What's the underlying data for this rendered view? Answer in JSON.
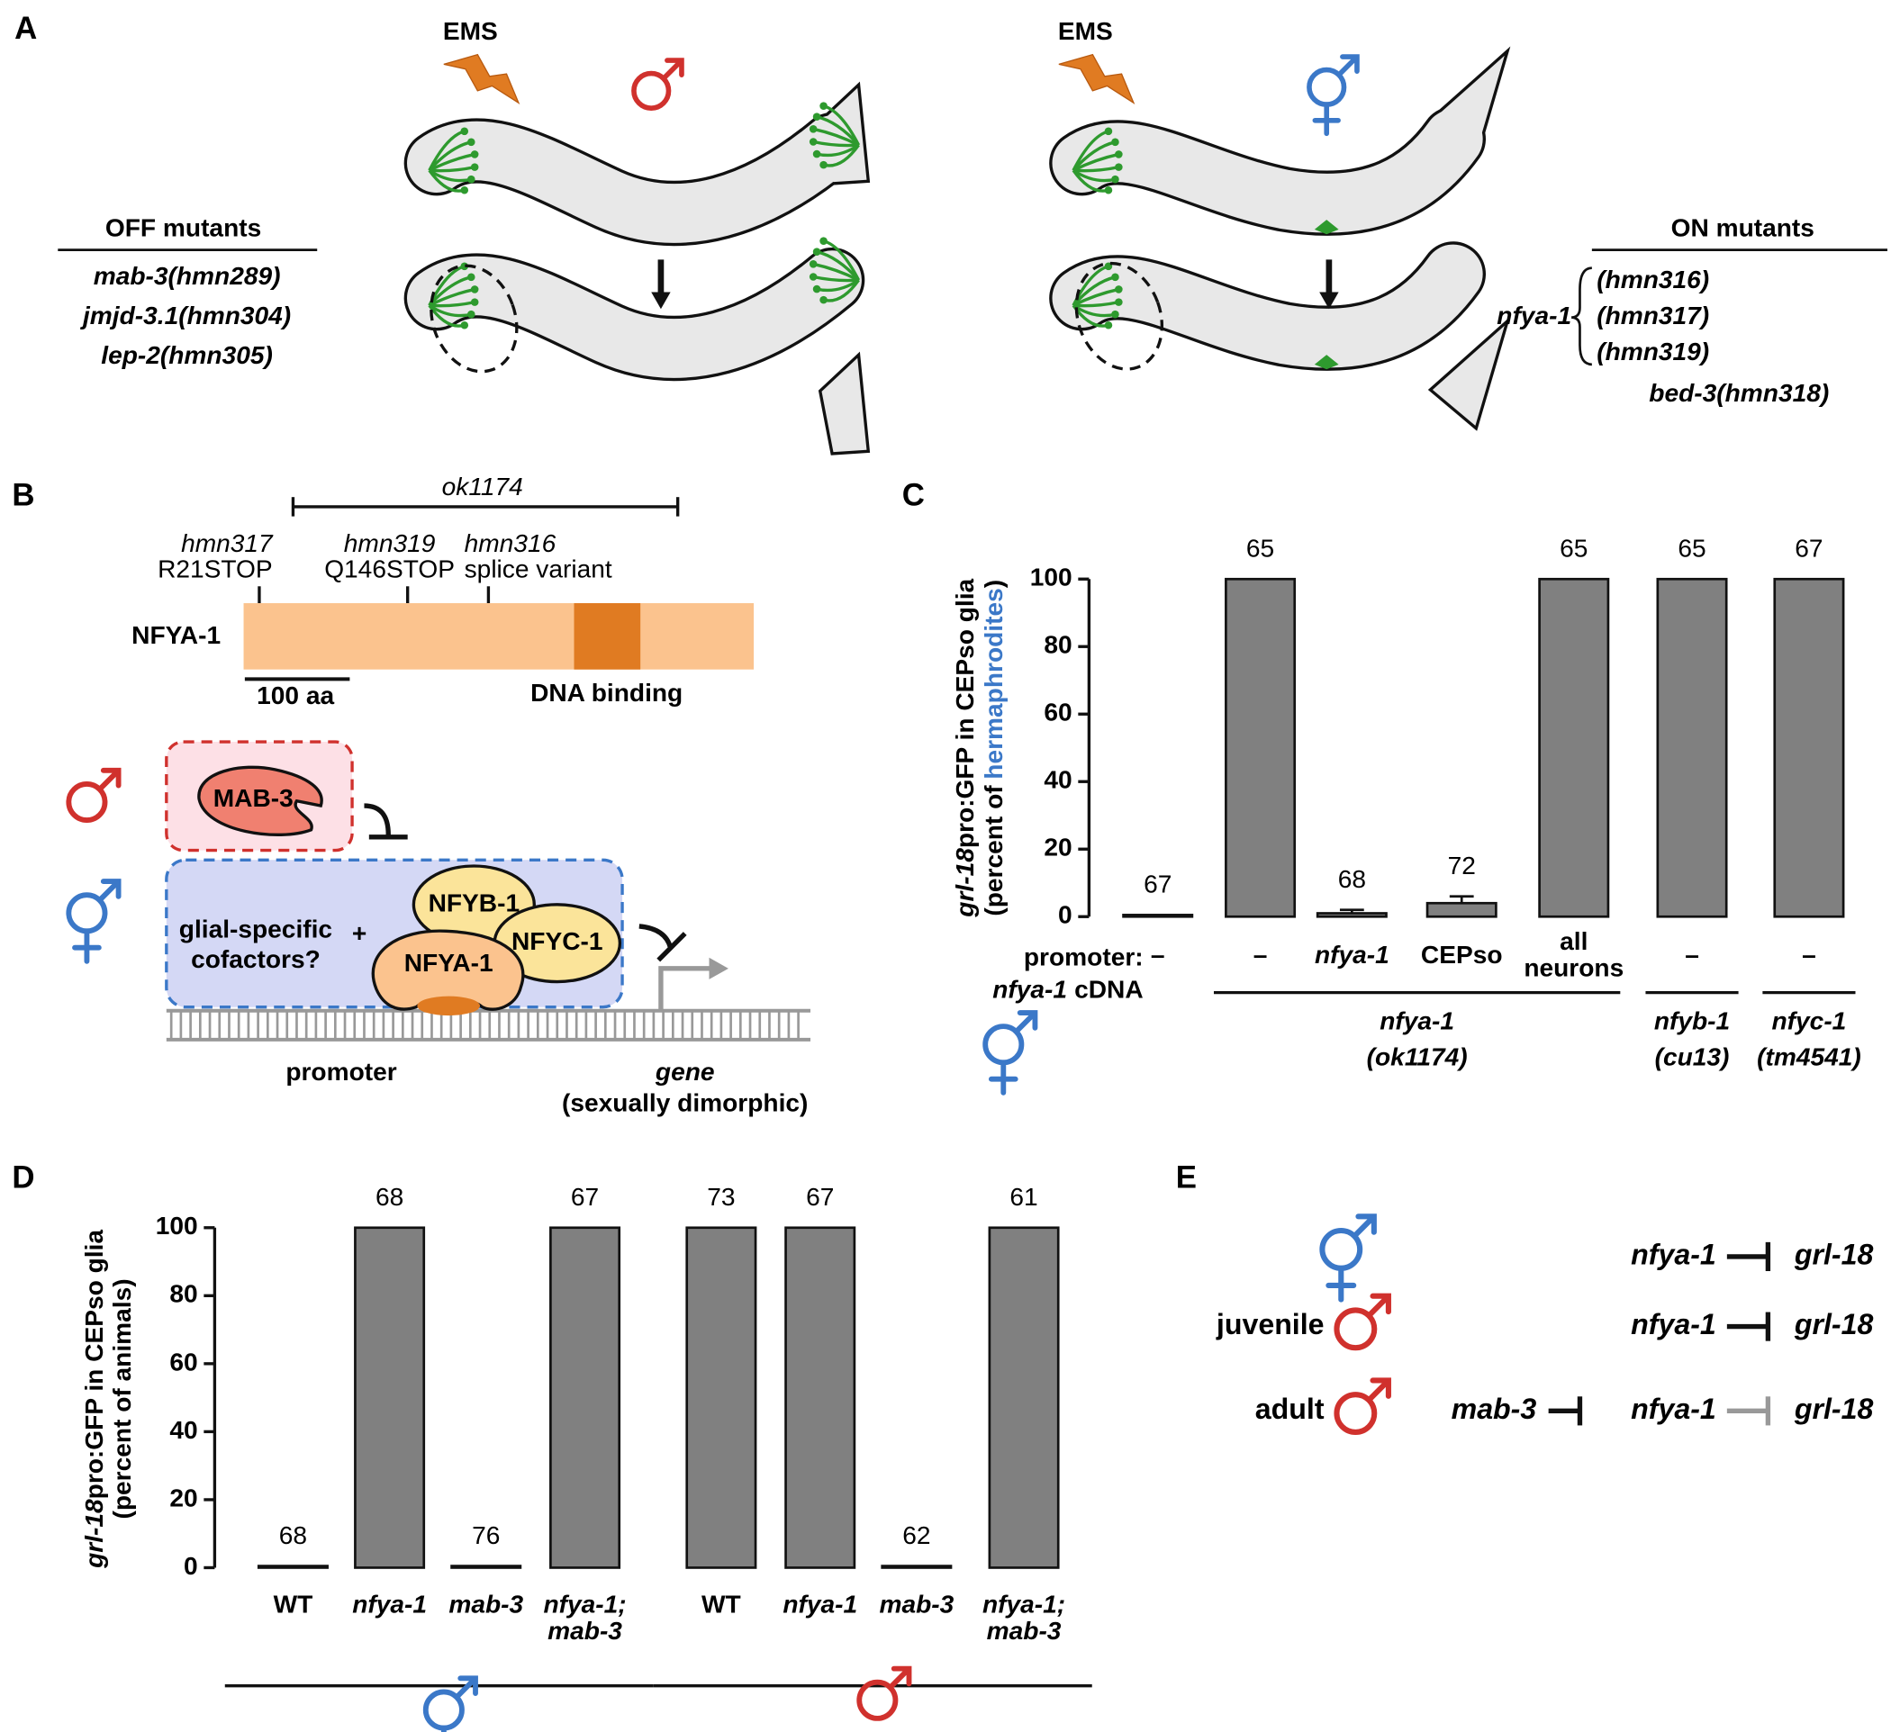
{
  "panel_labels": [
    "A",
    "B",
    "C",
    "D",
    "E"
  ],
  "panel_a": {
    "ems": "EMS",
    "off_mutants": {
      "title": "OFF mutants",
      "alleles": [
        "mab-3(hmn289)",
        "jmjd-3.1(hmn304)",
        "lep-2(hmn305)"
      ]
    },
    "on_mutants": {
      "title": "ON mutants",
      "gene": "nfya-1",
      "alleles": [
        "(hmn316)",
        "(hmn317)",
        "(hmn319)"
      ],
      "other": "bed-3(hmn318)"
    }
  },
  "panel_b": {
    "deletion": "ok1174",
    "mutations": [
      {
        "allele": "hmn317",
        "change": "R21STOP"
      },
      {
        "allele": "hmn319",
        "change": "Q146STOP"
      },
      {
        "allele": "hmn316",
        "change": "splice variant"
      }
    ],
    "protein": "NFYA-1",
    "scale_bar": "100 aa",
    "domain": "DNA binding",
    "model": {
      "repressor": "MAB-3",
      "cofactors": [
        "glial-specific",
        "cofactors?"
      ],
      "plus": "+",
      "subunits": [
        "NFYB-1",
        "NFYC-1",
        "NFYA-1"
      ],
      "promoter": "promoter",
      "gene": "gene",
      "gene_note": "(sexually dimorphic)"
    }
  },
  "chart_data": [
    {
      "type": "bar",
      "ylabel": [
        [
          "grl-18",
          "pro:GFP in CEPso glia"
        ],
        [
          "(percent of",
          "hermaphrodites",
          ")"
        ]
      ],
      "row_labels": {
        "promoter": "promoter:",
        "construct": [
          "nfya-1",
          "cDNA"
        ]
      },
      "categories": [
        [
          "–"
        ],
        [
          "–"
        ],
        [
          "nfya-1"
        ],
        [
          "CEPso"
        ],
        [
          "all",
          "neurons"
        ],
        [
          "–"
        ],
        [
          "–"
        ]
      ],
      "values": [
        0.5,
        100,
        1,
        4,
        100,
        100,
        100
      ],
      "errors": [
        0,
        0,
        1,
        2,
        0,
        0,
        0
      ],
      "n": [
        67,
        65,
        68,
        72,
        65,
        65,
        67
      ],
      "groups": [
        [
          "nfya-1",
          "(ok1174)"
        ],
        [
          "nfyb-1",
          "(cu13)"
        ],
        [
          "nfyc-1",
          "(tm4541)"
        ]
      ],
      "color": "#808080",
      "ylim": [
        0,
        100
      ],
      "yticks": [
        0,
        20,
        40,
        60,
        80,
        100
      ]
    },
    {
      "type": "bar",
      "ylabel": [
        [
          "grl-18",
          "pro:GFP in CEPso glia"
        ],
        [
          "(percent of animals)"
        ]
      ],
      "categories": [
        [
          "WT"
        ],
        [
          "nfya-1"
        ],
        [
          "mab-3"
        ],
        [
          "nfya-1;",
          "mab-3"
        ],
        [
          "WT"
        ],
        [
          "nfya-1"
        ],
        [
          "mab-3"
        ],
        [
          "nfya-1;",
          "mab-3"
        ]
      ],
      "values": [
        0.5,
        100,
        0.5,
        100,
        100,
        100,
        0.5,
        100
      ],
      "n": [
        68,
        68,
        76,
        67,
        73,
        67,
        62,
        61
      ],
      "color": "#808080",
      "ylim": [
        0,
        100
      ],
      "yticks": [
        0,
        20,
        40,
        60,
        80,
        100
      ]
    }
  ],
  "panel_e": {
    "rows": [
      {
        "regulator": "nfya-1",
        "target": "grl-18"
      },
      {
        "stage": "juvenile",
        "regulator": "nfya-1",
        "target": "grl-18"
      },
      {
        "stage": "adult",
        "upstream": "mab-3",
        "regulator": "nfya-1",
        "target": "grl-18"
      }
    ]
  }
}
